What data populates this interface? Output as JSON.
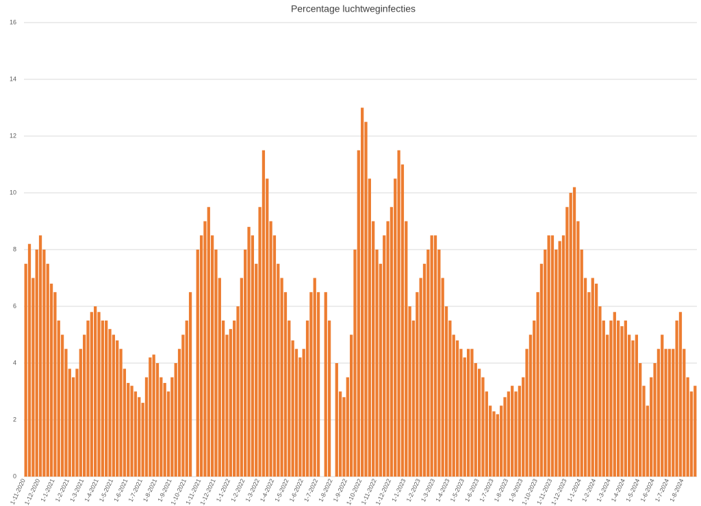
{
  "chart_data": {
    "type": "bar",
    "title": "Percentage luchtweginfecties",
    "categories": [
      "1-11-2020",
      null,
      null,
      null,
      "1-12-2020",
      null,
      null,
      null,
      "1-1-2021",
      null,
      null,
      null,
      "1-2-2021",
      null,
      null,
      null,
      "1-3-2021",
      null,
      null,
      null,
      "1-4-2021",
      null,
      null,
      null,
      "1-5-2021",
      null,
      null,
      null,
      "1-6-2021",
      null,
      null,
      null,
      "1-7-2021",
      null,
      null,
      null,
      "1-8-2021",
      null,
      null,
      null,
      "1-9-2021",
      null,
      null,
      null,
      "1-10-2021",
      null,
      null,
      null,
      "1-11-2021",
      null,
      null,
      null,
      "1-12-2021",
      null,
      null,
      null,
      "1-1-2022",
      null,
      null,
      null,
      "1-2-2022",
      null,
      null,
      null,
      "1-3-2022",
      null,
      null,
      null,
      "1-4-2022",
      null,
      null,
      null,
      "1-5-2022",
      null,
      null,
      null,
      "1-6-2022",
      null,
      null,
      null,
      "1-7-2022",
      null,
      null,
      null,
      "1-8-2022",
      null,
      null,
      null,
      "1-9-2022",
      null,
      null,
      null,
      "1-10-2022",
      null,
      null,
      null,
      "1-11-2022",
      null,
      null,
      null,
      "1-12-2022",
      null,
      null,
      null,
      "1-1-2023",
      null,
      null,
      null,
      "1-2-2023",
      null,
      null,
      null,
      "1-3-2023",
      null,
      null,
      null,
      "1-4-2023",
      null,
      null,
      null,
      "1-5-2023",
      null,
      null,
      null,
      "1-6-2023",
      null,
      null,
      null,
      "1-7-2023",
      null,
      null,
      null,
      "1-8-2023",
      null,
      null,
      null,
      "1-9-2023",
      null,
      null,
      null,
      "1-10-2023",
      null,
      null,
      null,
      "1-11-2023",
      null,
      null,
      null,
      "1-12-2023",
      null,
      null,
      null,
      "1-1-2024",
      null,
      null,
      null,
      "1-2-2024",
      null,
      null,
      null,
      "1-3-2024",
      null,
      null,
      null,
      "1-4-2024",
      null,
      null,
      null,
      "1-5-2024",
      null,
      null,
      null,
      "1-6-2024",
      null,
      null,
      null,
      "1-7-2024",
      null,
      null,
      null,
      "1-8-2024",
      null,
      null,
      null
    ],
    "values": [
      7.5,
      8.2,
      7.0,
      8.0,
      8.5,
      8.0,
      7.5,
      6.8,
      6.5,
      5.5,
      5.0,
      4.5,
      3.8,
      3.5,
      3.8,
      4.5,
      5.0,
      5.5,
      5.8,
      6.0,
      5.8,
      5.5,
      5.5,
      5.2,
      5.0,
      4.8,
      4.5,
      3.8,
      3.3,
      3.2,
      3.0,
      2.8,
      2.6,
      3.5,
      4.2,
      4.3,
      4.0,
      3.5,
      3.3,
      3.0,
      3.5,
      4.0,
      4.5,
      5.0,
      5.5,
      6.5,
      0,
      8.0,
      8.5,
      9.0,
      9.5,
      8.5,
      8.0,
      7.0,
      5.5,
      5.0,
      5.2,
      5.5,
      6.0,
      7.0,
      8.0,
      8.8,
      8.5,
      7.5,
      9.5,
      11.5,
      10.5,
      9.0,
      8.5,
      7.5,
      7.0,
      6.5,
      5.5,
      4.8,
      4.5,
      4.2,
      4.5,
      5.5,
      6.5,
      7.0,
      6.5,
      0,
      6.5,
      5.5,
      0,
      4.0,
      3.0,
      2.8,
      3.5,
      5.0,
      8.0,
      11.5,
      13.0,
      12.5,
      10.5,
      9.0,
      8.0,
      7.5,
      8.5,
      9.0,
      9.5,
      10.5,
      11.5,
      11.0,
      9.0,
      6.0,
      5.5,
      6.5,
      7.0,
      7.5,
      8.0,
      8.5,
      8.5,
      8.0,
      7.0,
      6.0,
      5.5,
      5.0,
      4.8,
      4.5,
      4.2,
      4.5,
      4.5,
      4.0,
      3.8,
      3.5,
      3.0,
      2.5,
      2.3,
      2.2,
      2.5,
      2.8,
      3.0,
      3.2,
      3.0,
      3.2,
      3.5,
      4.5,
      5.0,
      5.5,
      6.5,
      7.5,
      8.0,
      8.5,
      8.5,
      8.0,
      8.3,
      8.5,
      9.5,
      10.0,
      10.2,
      9.0,
      8.0,
      7.0,
      6.5,
      7.0,
      6.8,
      6.0,
      5.5,
      5.0,
      5.5,
      5.8,
      5.5,
      5.3,
      5.5,
      5.0,
      4.8,
      5.0,
      4.0,
      3.2,
      2.5,
      3.5,
      4.0,
      4.5,
      5.0,
      4.5,
      4.5,
      4.5,
      5.5,
      5.8,
      4.5,
      3.5,
      3.0,
      3.2
    ],
    "color": "#ed7d31",
    "ylim": [
      0,
      16
    ],
    "yticks": [
      0,
      2,
      4,
      6,
      8,
      10,
      12,
      14,
      16
    ],
    "grid": true
  }
}
